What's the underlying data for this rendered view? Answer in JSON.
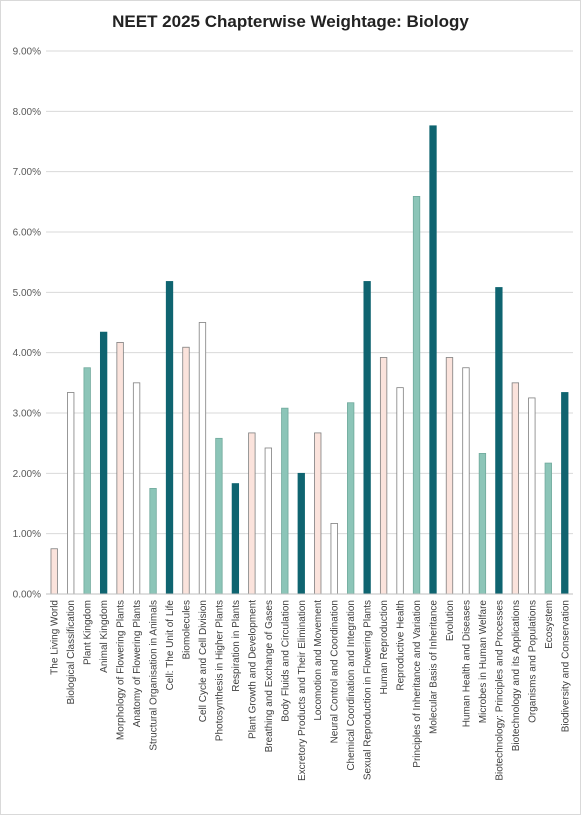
{
  "chart_data": {
    "type": "bar",
    "title": "NEET 2025 Chapterwise Weightage: Biology",
    "xlabel": "",
    "ylabel": "",
    "ylim": [
      0,
      9
    ],
    "yticks": [
      "0.00%",
      "1.00%",
      "2.00%",
      "3.00%",
      "4.00%",
      "5.00%",
      "6.00%",
      "7.00%",
      "8.00%",
      "9.00%"
    ],
    "grid": true,
    "legend": "none",
    "colors": {
      "pink": "#fbe3dc",
      "white": "#ffffff",
      "teal_light": "#8cc5b8",
      "teal_dark": "#0f6470",
      "outline": "#7f7f7f",
      "gridline": "#d9d9d9"
    },
    "color_cycle": [
      "pink",
      "white",
      "teal_light",
      "teal_dark"
    ],
    "categories": [
      "The Living World",
      "Biological Classification",
      "Plant Kingdom",
      "Animal Kingdom",
      "Morphology of Flowering Plants",
      "Anatomy of Flowering Plants",
      "Structural Organisation in Animals",
      "Cell: The Unit of Life",
      "Biomolecules",
      "Cell Cycle and Cell Division",
      "Photosynthesis in Higher Plants",
      "Respiration in Plants",
      "Plant Growth and Development",
      "Breathing and Exchange of Gases",
      "Body Fluids and Circulation",
      "Excretory Products and Their Elimination",
      "Locomotion and Movement",
      "Neural Control and Coordination",
      "Chemical Coordination and Integration",
      "Sexual Reproduction in Flowering Plants",
      "Human Reproduction",
      "Reproductive Health",
      "Principles of Inheritance and Variation",
      "Molecular Basis of Inheritance",
      "Evolution",
      "Human Health and Diseases",
      "Microbes in Human Welfare",
      "Biotechnology: Principles and Processes",
      "Biotechnology and its Applications",
      "Organisms and Populations",
      "Ecosystem",
      "Biodiversity and Conservation"
    ],
    "values": [
      0.75,
      3.34,
      3.75,
      4.34,
      4.17,
      3.5,
      1.75,
      5.18,
      4.09,
      4.5,
      2.58,
      1.83,
      2.67,
      2.42,
      3.08,
      2.0,
      2.67,
      1.17,
      3.17,
      5.18,
      3.92,
      3.42,
      6.59,
      7.76,
      3.92,
      3.75,
      2.33,
      5.08,
      3.5,
      3.25,
      2.17,
      3.34
    ]
  }
}
